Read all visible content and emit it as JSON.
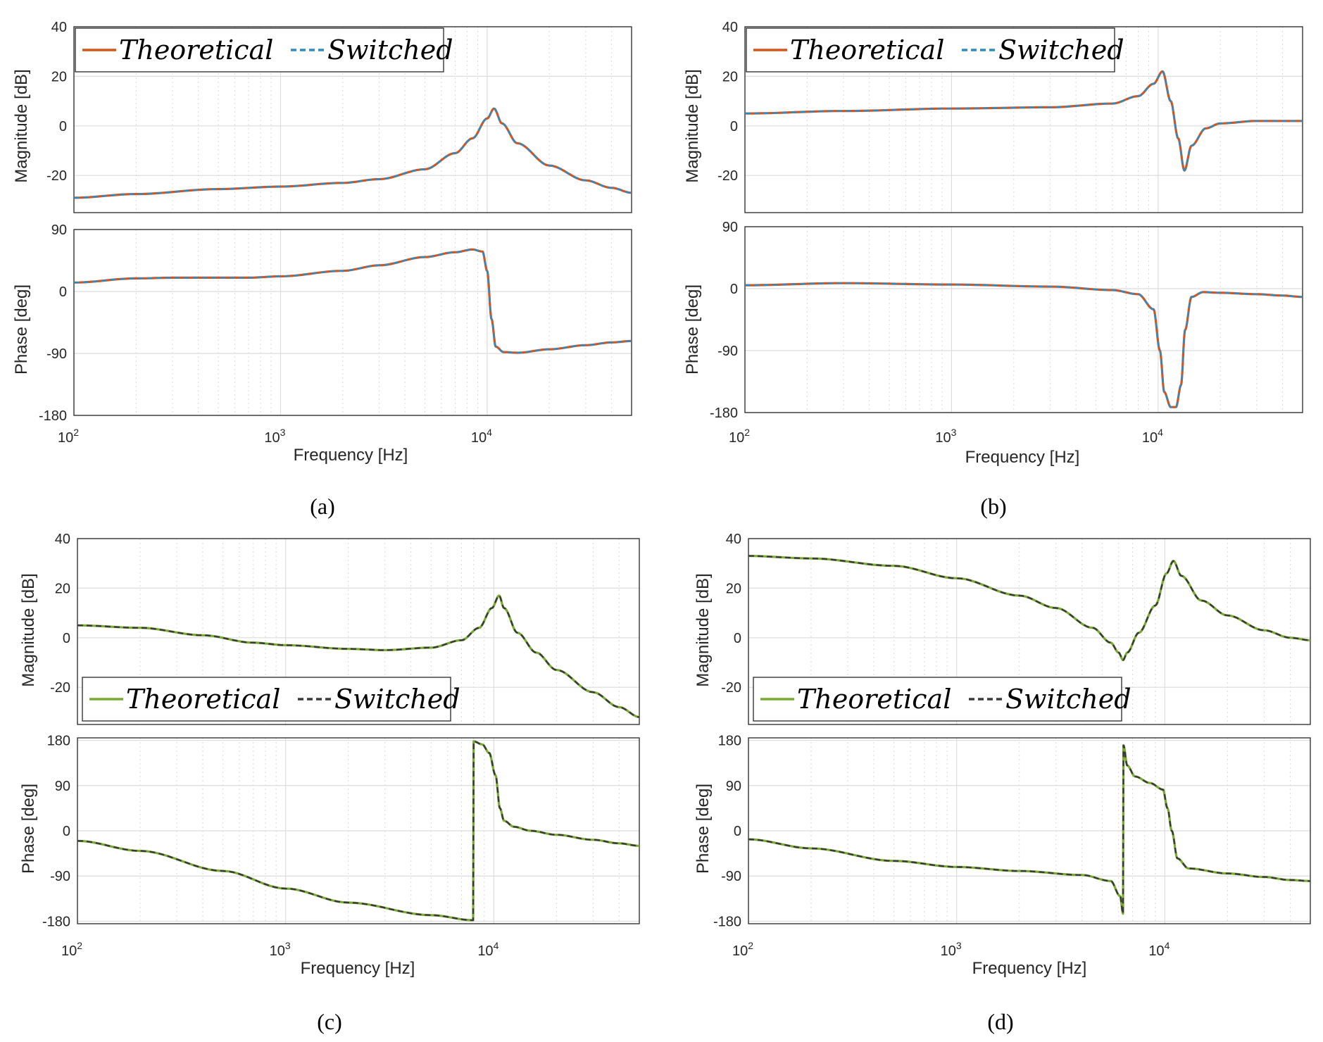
{
  "figure": {
    "xlabel": "Frequency [Hz]",
    "mag_ylabel": "Magnitude [dB]",
    "phase_ylabel": "Phase [deg]",
    "x_tick_base": "10",
    "x_tick_exponents": [
      "2",
      "3",
      "4"
    ]
  },
  "colors": {
    "orange": "#D95319",
    "blue": "#2E8BC0",
    "green": "#77AC30",
    "darkgray": "#3A3A3A"
  },
  "chart_data": [
    {
      "type": "line",
      "panel": "a",
      "caption": "(a)",
      "legend": {
        "labels": [
          "Theoretical",
          "Switched"
        ],
        "position": "top-left",
        "colors": [
          "orange",
          "blue"
        ]
      },
      "xscale": "log",
      "xlim": [
        100,
        50000
      ],
      "magnitude": {
        "ylim": [
          -35,
          40
        ],
        "yticks": [
          -20,
          0,
          20,
          40
        ],
        "x": [
          100,
          200,
          500,
          1000,
          2000,
          3000,
          5000,
          7000,
          8500,
          10000,
          10800,
          11800,
          14000,
          20000,
          30000,
          40000,
          50000
        ],
        "y": [
          -29,
          -27.5,
          -25.5,
          -24.5,
          -23,
          -21.5,
          -17.5,
          -11,
          -5,
          3,
          7,
          1,
          -7,
          -16,
          -22,
          -25,
          -27
        ]
      },
      "phase": {
        "ylim": [
          -180,
          90
        ],
        "yticks": [
          -180,
          -90,
          0,
          90
        ],
        "x": [
          100,
          200,
          300,
          700,
          1000,
          2000,
          3000,
          5000,
          7000,
          8500,
          9500,
          10000,
          10500,
          11000,
          12000,
          14000,
          20000,
          30000,
          40000,
          50000
        ],
        "y": [
          13,
          19,
          20,
          20,
          22,
          30,
          38,
          50,
          57,
          61,
          58,
          30,
          -40,
          -80,
          -88,
          -89,
          -84,
          -78,
          -74,
          -72
        ]
      }
    },
    {
      "type": "line",
      "panel": "b",
      "caption": "(b)",
      "legend": {
        "labels": [
          "Theoretical",
          "Switched"
        ],
        "position": "top-left",
        "colors": [
          "orange",
          "blue"
        ]
      },
      "xscale": "log",
      "xlim": [
        100,
        50000
      ],
      "magnitude": {
        "ylim": [
          -35,
          40
        ],
        "yticks": [
          -20,
          0,
          20,
          40
        ],
        "x": [
          100,
          300,
          1000,
          3000,
          6000,
          8000,
          9500,
          10500,
          11500,
          12500,
          13400,
          14500,
          17000,
          20000,
          30000,
          40000,
          50000
        ],
        "y": [
          5,
          6,
          7,
          7.5,
          9,
          12,
          17,
          22,
          10,
          -5,
          -18,
          -8,
          -1,
          1,
          2,
          2,
          2
        ]
      },
      "phase": {
        "ylim": [
          -180,
          90
        ],
        "yticks": [
          -180,
          -90,
          0,
          90
        ],
        "x": [
          100,
          300,
          1000,
          3000,
          6000,
          8000,
          9500,
          10200,
          10700,
          11500,
          12200,
          12900,
          13500,
          14500,
          16500,
          20000,
          30000,
          40000,
          50000
        ],
        "y": [
          5,
          8,
          6,
          3,
          -2,
          -8,
          -30,
          -90,
          -150,
          -172,
          -172,
          -140,
          -60,
          -12,
          -5,
          -6,
          -8,
          -10,
          -12
        ]
      }
    },
    {
      "type": "line",
      "panel": "c",
      "caption": "(c)",
      "legend": {
        "labels": [
          "Theoretical",
          "Switched"
        ],
        "position": "bottom-left",
        "colors": [
          "green",
          "darkgray"
        ]
      },
      "xscale": "log",
      "xlim": [
        100,
        50000
      ],
      "magnitude": {
        "ylim": [
          -35,
          40
        ],
        "yticks": [
          -20,
          0,
          20,
          40
        ],
        "x": [
          100,
          200,
          400,
          700,
          1000,
          2000,
          3000,
          5000,
          7000,
          8500,
          9800,
          10600,
          11200,
          13000,
          16000,
          20000,
          30000,
          40000,
          50000
        ],
        "y": [
          5,
          4,
          1,
          -2,
          -3,
          -4.5,
          -5,
          -4,
          -1,
          4,
          12,
          17,
          12,
          2,
          -6,
          -13,
          -22,
          -28,
          -32
        ]
      },
      "phase": {
        "ylim": [
          -185,
          185
        ],
        "yticks": [
          -180,
          -90,
          0,
          90,
          180
        ],
        "x": [
          100,
          200,
          500,
          1000,
          2000,
          5000,
          7960,
          8000,
          8800,
          9500,
          10200,
          10700,
          11200,
          12500,
          15000,
          20000,
          30000,
          40000,
          50000
        ],
        "y": [
          -20,
          -40,
          -80,
          -115,
          -143,
          -168,
          -178,
          178,
          172,
          155,
          110,
          45,
          20,
          8,
          0,
          -8,
          -18,
          -25,
          -30
        ]
      }
    },
    {
      "type": "line",
      "panel": "d",
      "caption": "(d)",
      "legend": {
        "labels": [
          "Theoretical",
          "Switched"
        ],
        "position": "bottom-left",
        "colors": [
          "green",
          "darkgray"
        ]
      },
      "xscale": "log",
      "xlim": [
        100,
        50000
      ],
      "magnitude": {
        "ylim": [
          -35,
          40
        ],
        "yticks": [
          -20,
          0,
          20,
          40
        ],
        "x": [
          100,
          200,
          500,
          1000,
          2000,
          3000,
          4500,
          5500,
          6000,
          6300,
          6600,
          7500,
          9000,
          10200,
          11000,
          12000,
          15000,
          20000,
          30000,
          40000,
          50000
        ],
        "y": [
          33,
          32,
          29,
          24,
          17,
          12,
          4,
          -2,
          -6,
          -9,
          -6,
          2,
          13,
          26,
          31,
          25,
          15,
          9,
          3,
          0,
          -1
        ]
      },
      "phase": {
        "ylim": [
          -185,
          185
        ],
        "yticks": [
          -180,
          -90,
          0,
          90,
          180
        ],
        "x": [
          100,
          200,
          500,
          1000,
          2000,
          4000,
          5500,
          6100,
          6300,
          6330,
          6600,
          7200,
          8500,
          9800,
          10300,
          10800,
          11500,
          13000,
          20000,
          30000,
          40000,
          50000
        ],
        "y": [
          -17,
          -35,
          -60,
          -72,
          -80,
          -88,
          -100,
          -130,
          -165,
          170,
          130,
          108,
          95,
          82,
          45,
          0,
          -55,
          -75,
          -85,
          -92,
          -98,
          -100
        ]
      }
    }
  ]
}
